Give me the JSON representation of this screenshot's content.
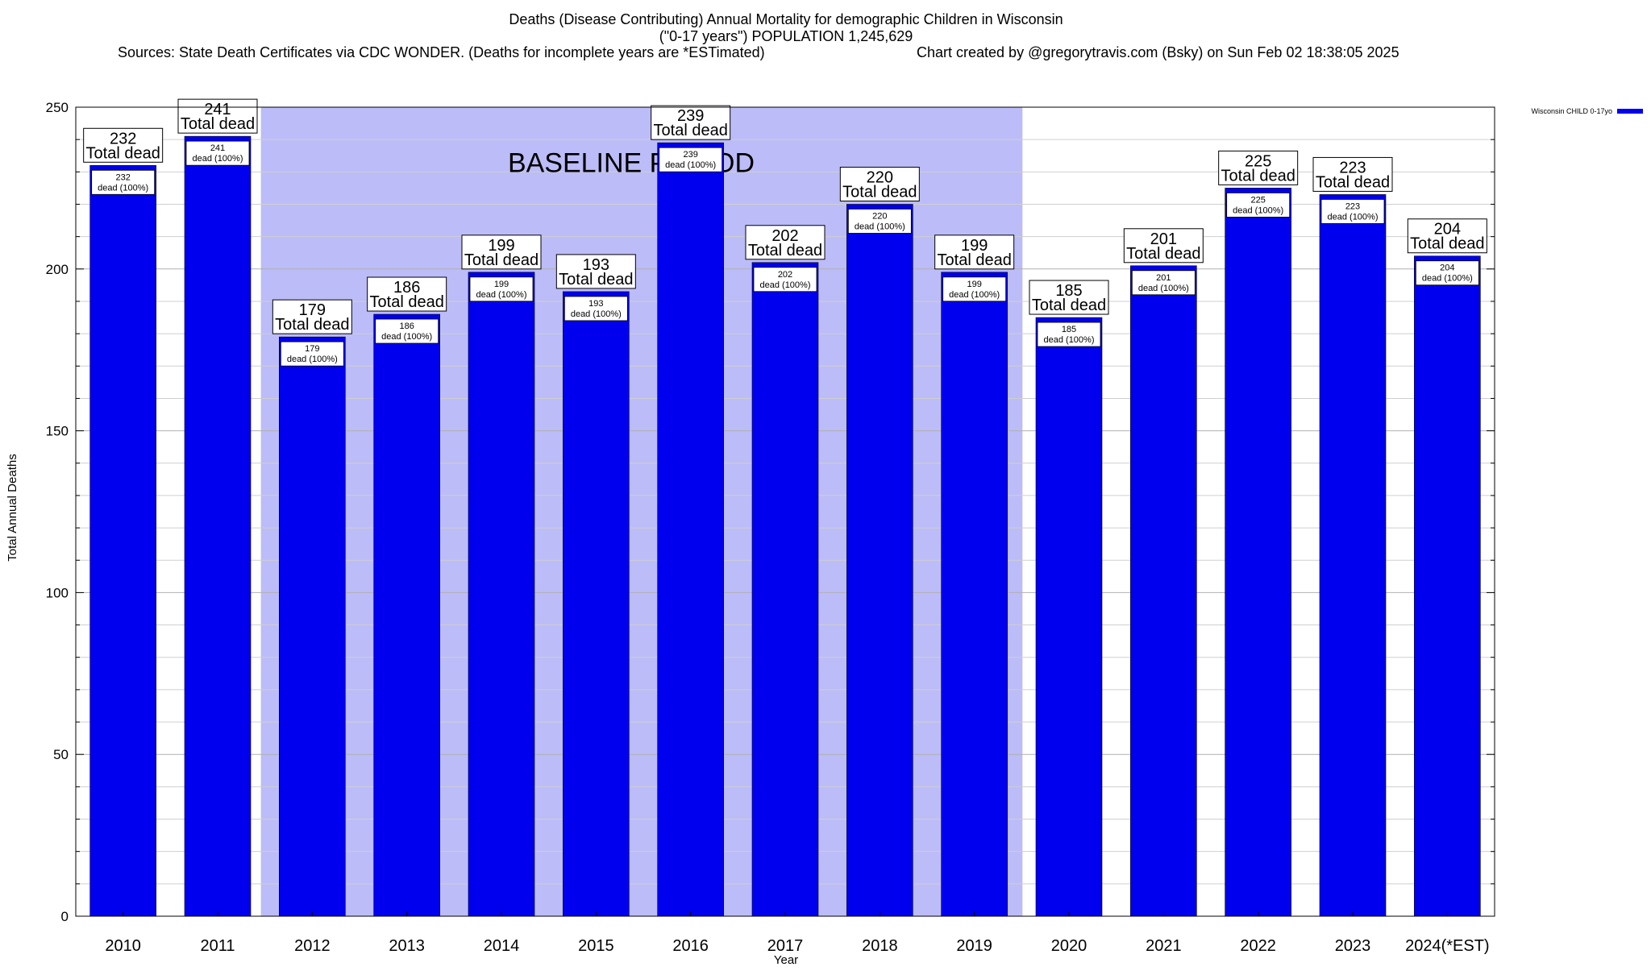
{
  "chart_data": {
    "type": "bar",
    "title": "Deaths (Disease Contributing) Annual Mortality for demographic Children in Wisconsin",
    "subtitle": "(\"0-17 years\") POPULATION 1,245,629",
    "sources": "Sources: State Death Certificates via CDC WONDER. (Deaths for incomplete years are *ESTimated)",
    "credit": "Chart created by @gregorytravis.com (Bsky) on Sun Feb 02 18:38:05 2025",
    "xlabel": "Year",
    "ylabel": "Total Annual Deaths",
    "ylim": [
      0,
      250
    ],
    "yticks": [
      0,
      50,
      100,
      150,
      200,
      250
    ],
    "grid": true,
    "legend_position": "top-right",
    "categories": [
      "2010",
      "2011",
      "2012",
      "2013",
      "2014",
      "2015",
      "2016",
      "2017",
      "2018",
      "2019",
      "2020",
      "2021",
      "2022",
      "2023",
      "2024(*EST)"
    ],
    "series": [
      {
        "name": "Wisconsin CHILD 0-17yo",
        "color": "#0000ee",
        "values": [
          232,
          241,
          179,
          186,
          199,
          193,
          239,
          202,
          220,
          199,
          185,
          201,
          225,
          223,
          204
        ]
      }
    ],
    "top_label_text": "Total dead",
    "inner_label_text": "dead (100%)",
    "baseline": {
      "label": "BASELINE PERIOD",
      "from": "2012",
      "to": "2019",
      "color": "#bcbcf8"
    }
  }
}
